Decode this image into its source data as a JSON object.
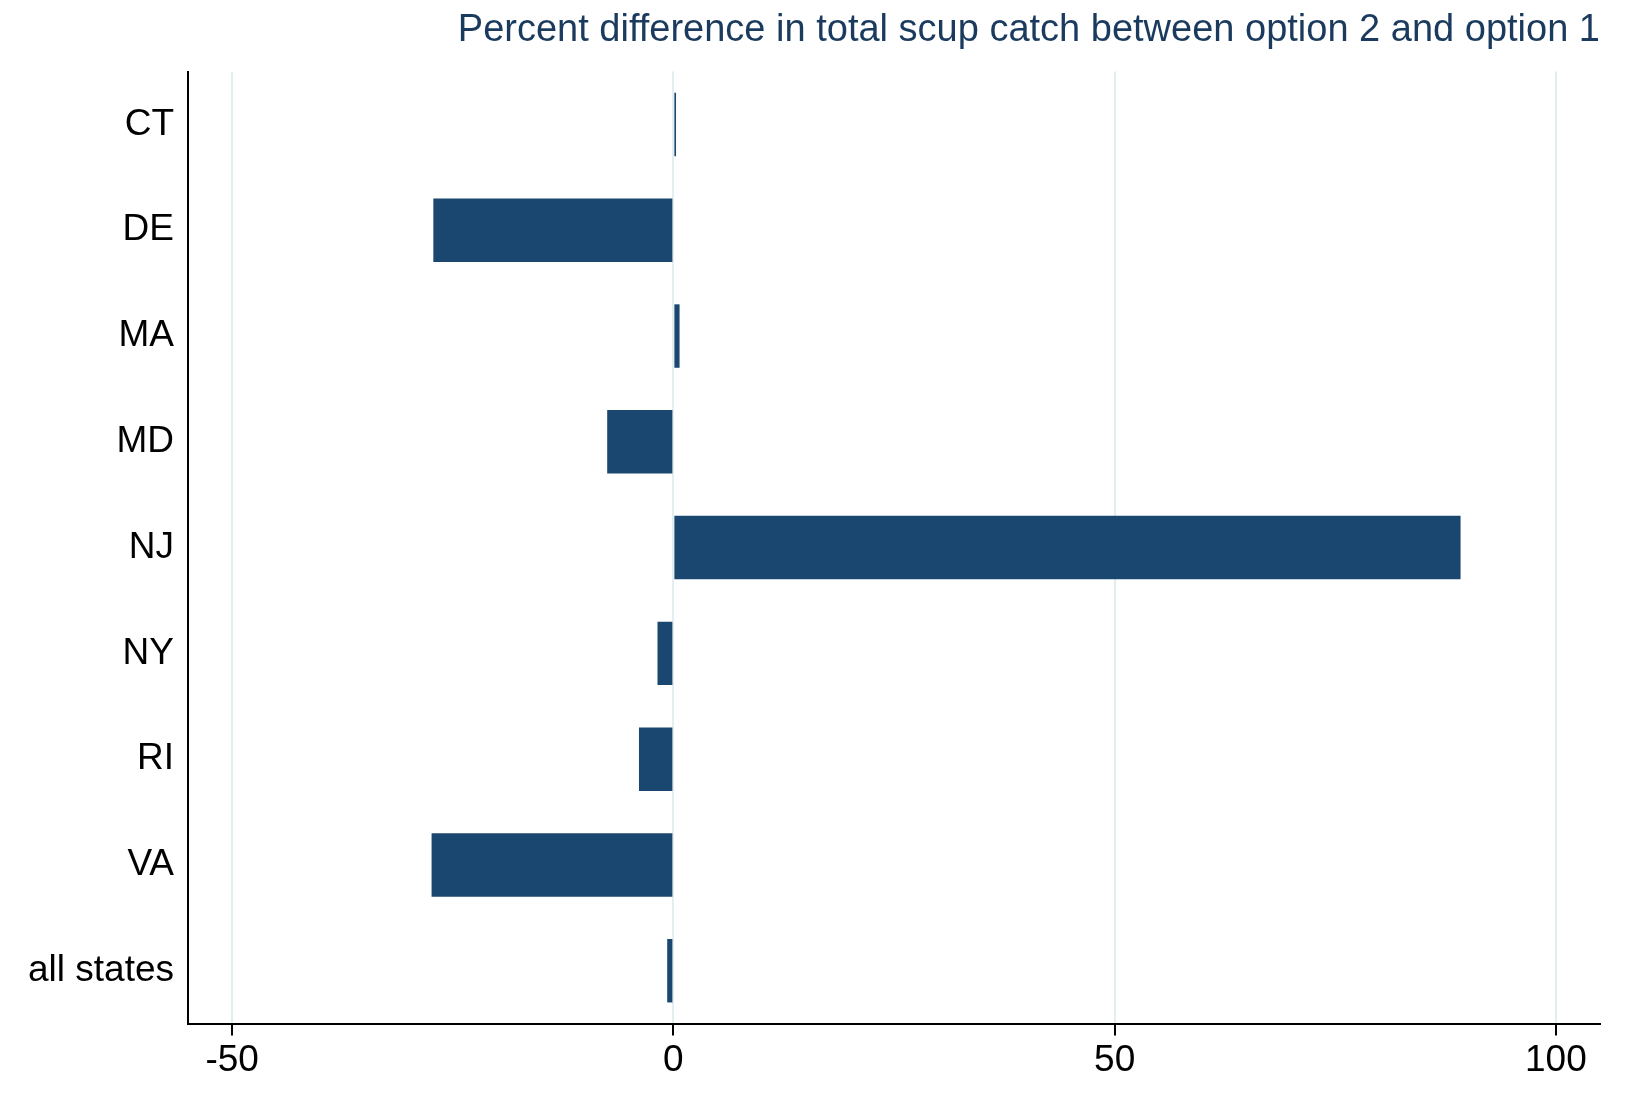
{
  "chart_data": {
    "type": "bar",
    "orientation": "horizontal",
    "title": "Percent difference in total scup catch between option 2 and option 1",
    "categories": [
      "CT",
      "DE",
      "MA",
      "MD",
      "NJ",
      "NY",
      "RI",
      "VA",
      "all states"
    ],
    "values": [
      0.3,
      -27.2,
      0.7,
      -7.5,
      89.2,
      -1.8,
      -3.9,
      -27.4,
      -0.7
    ],
    "color": "#1a476f",
    "xlim": [
      -55,
      105
    ],
    "xticks": [
      -50,
      0,
      50,
      100
    ],
    "grid": "x"
  }
}
